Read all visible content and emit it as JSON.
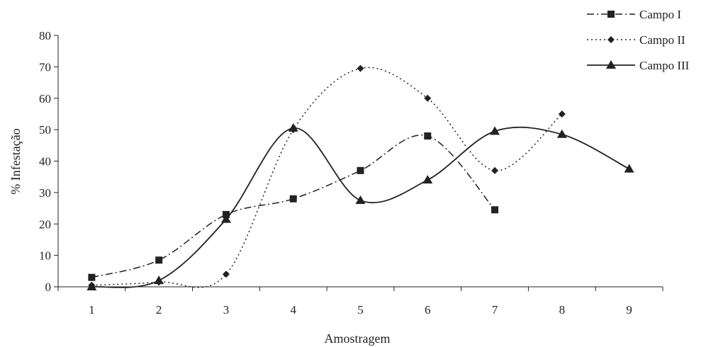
{
  "chart_data": {
    "type": "line",
    "title": "",
    "xlabel": "Amostragem",
    "ylabel": "% Infestação",
    "categories": [
      "1",
      "2",
      "3",
      "4",
      "5",
      "6",
      "7",
      "8",
      "9"
    ],
    "ylim": [
      0,
      80
    ],
    "yticks": [
      "0",
      "10",
      "20",
      "30",
      "40",
      "50",
      "60",
      "70",
      "80"
    ],
    "grid": false,
    "legend_position": "top-right",
    "series": [
      {
        "name": "Campo I",
        "marker": "square",
        "line_style": "dash-dot",
        "smooth": true,
        "values": [
          3,
          8.5,
          23,
          28,
          37,
          48,
          24.5,
          null,
          null
        ]
      },
      {
        "name": "Campo II",
        "marker": "diamond",
        "line_style": "dotted",
        "smooth": true,
        "values": [
          0.5,
          1.5,
          4,
          50,
          69.5,
          60,
          37,
          55,
          null
        ]
      },
      {
        "name": "Campo III",
        "marker": "triangle",
        "line_style": "solid",
        "smooth": true,
        "values": [
          0,
          2,
          21.5,
          50.5,
          27.5,
          34,
          49.5,
          48.5,
          37.5
        ]
      }
    ],
    "colors": {
      "ink": "#222222"
    }
  }
}
